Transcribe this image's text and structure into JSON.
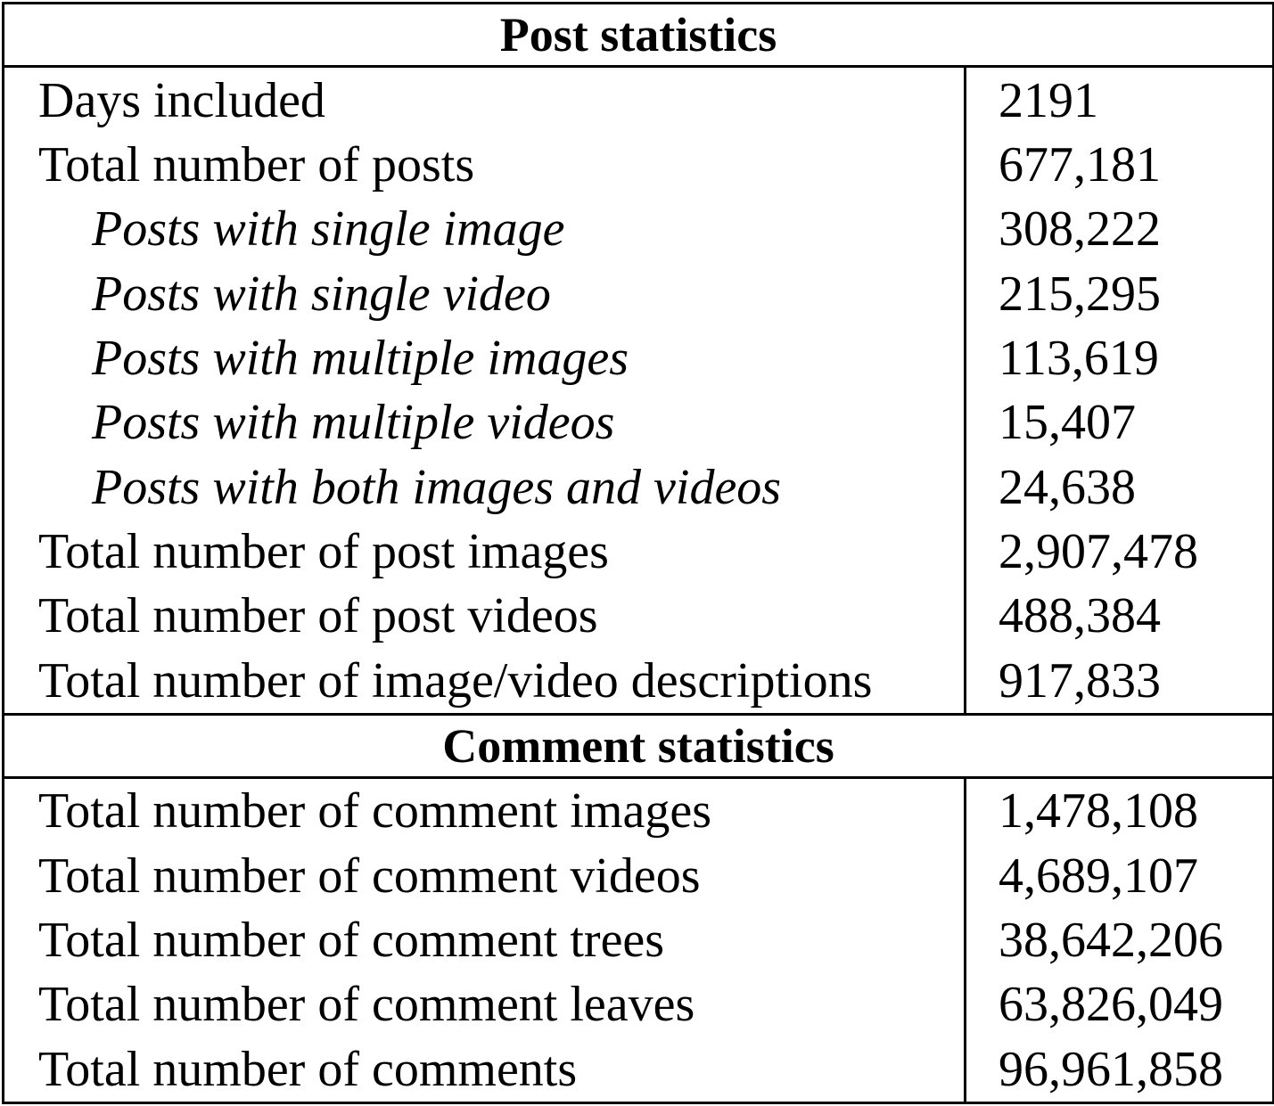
{
  "sections": [
    {
      "title": "Post statistics",
      "rows": [
        {
          "label": "Days included",
          "value": "2191",
          "indent": false
        },
        {
          "label": "Total number of posts",
          "value": "677,181",
          "indent": false
        },
        {
          "label": "Posts with single image",
          "value": "308,222",
          "indent": true
        },
        {
          "label": "Posts with single video",
          "value": "215,295",
          "indent": true
        },
        {
          "label": "Posts with multiple images",
          "value": "113,619",
          "indent": true
        },
        {
          "label": "Posts with multiple videos",
          "value": "15,407",
          "indent": true
        },
        {
          "label": "Posts with both images and videos",
          "value": "24,638",
          "indent": true
        },
        {
          "label": "Total number of post images",
          "value": "2,907,478",
          "indent": false
        },
        {
          "label": "Total number of post videos",
          "value": "488,384",
          "indent": false
        },
        {
          "label": "Total number of image/video descriptions",
          "value": "917,833",
          "indent": false
        }
      ]
    },
    {
      "title": "Comment statistics",
      "rows": [
        {
          "label": "Total number of comment images",
          "value": "1,478,108",
          "indent": false
        },
        {
          "label": "Total number of comment videos",
          "value": "4,689,107",
          "indent": false
        },
        {
          "label": "Total number of comment trees",
          "value": "38,642,206",
          "indent": false
        },
        {
          "label": "Total number of comment leaves",
          "value": "63,826,049",
          "indent": false
        },
        {
          "label": "Total number of comments",
          "value": "96,961,858",
          "indent": false
        }
      ]
    }
  ]
}
